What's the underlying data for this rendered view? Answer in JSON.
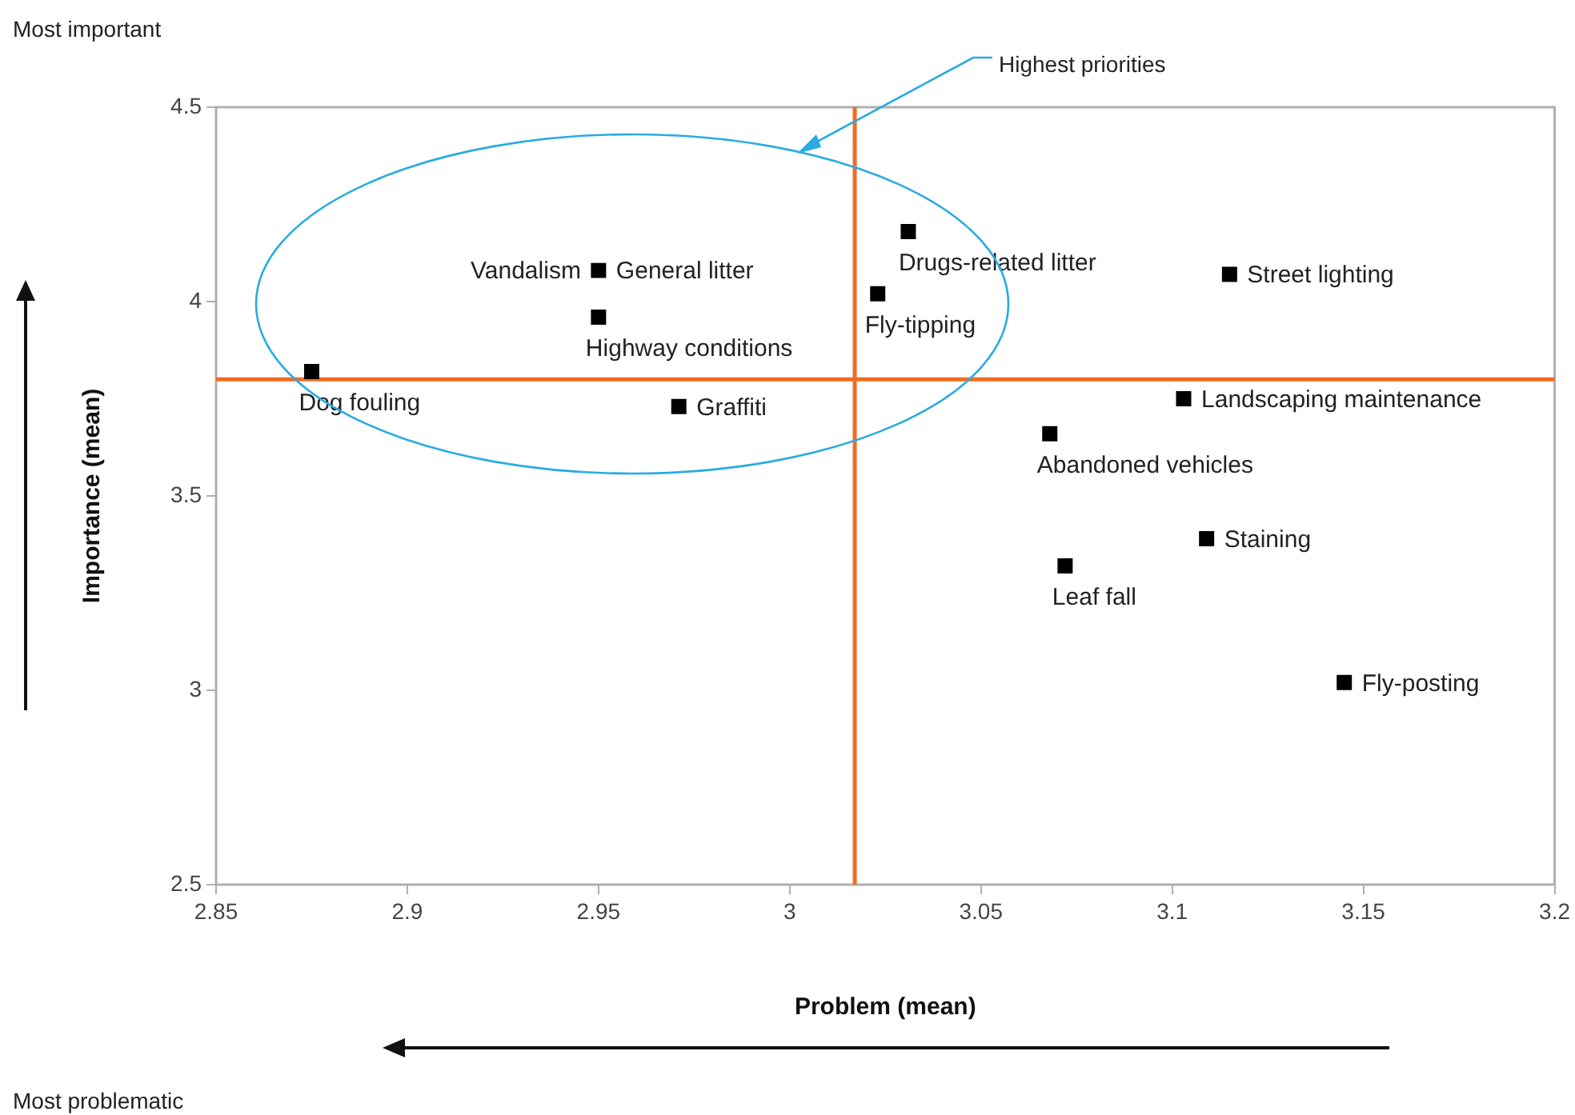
{
  "chart_data": {
    "type": "scatter",
    "xlabel": "Problem (mean)",
    "ylabel": "Importance (mean)",
    "xlim": [
      2.85,
      3.2
    ],
    "xticks": [
      2.85,
      2.9,
      2.95,
      3,
      3.05,
      3.1,
      3.15,
      3.2
    ],
    "ylim": [
      2.5,
      4.5
    ],
    "yticks": [
      2.5,
      3,
      3.5,
      4,
      4.5
    ],
    "grid": false,
    "legend": false,
    "marker": "square",
    "series": [
      {
        "name": "Dog fouling",
        "color": "#000000",
        "x": [
          2.875
        ],
        "values": [
          3.82
        ]
      },
      {
        "name": "Vandalism",
        "color": "#000000",
        "x": [
          2.95
        ],
        "values": [
          4.08
        ]
      },
      {
        "name": "Highway conditions",
        "color": "#000000",
        "x": [
          2.95
        ],
        "values": [
          3.96
        ]
      },
      {
        "name": "Graffiti",
        "color": "#000000",
        "x": [
          2.971
        ],
        "values": [
          3.73
        ]
      },
      {
        "name": "Drugs-related litter",
        "color": "#000000",
        "x": [
          3.031
        ],
        "values": [
          4.18
        ]
      },
      {
        "name": "Fly-tipping",
        "color": "#000000",
        "x": [
          3.023
        ],
        "values": [
          4.02
        ]
      },
      {
        "name": "Street lighting",
        "color": "#000000",
        "x": [
          3.115
        ],
        "values": [
          4.07
        ]
      },
      {
        "name": "Landscaping maintenance",
        "color": "#000000",
        "x": [
          3.103
        ],
        "values": [
          3.75
        ]
      },
      {
        "name": "Abandoned vehicles",
        "color": "#000000",
        "x": [
          3.068
        ],
        "values": [
          3.66
        ]
      },
      {
        "name": "Staining",
        "color": "#000000",
        "x": [
          3.109
        ],
        "values": [
          3.39
        ]
      },
      {
        "name": "Leaf fall",
        "color": "#000000",
        "x": [
          3.072
        ],
        "values": [
          3.32
        ]
      },
      {
        "name": "Fly-posting",
        "color": "#000000",
        "x": [
          3.145
        ],
        "values": [
          3.02
        ]
      }
    ],
    "ref_lines": [
      {
        "axis": "x",
        "value": 3.017,
        "color": "#f26b21"
      },
      {
        "axis": "y",
        "value": 3.8,
        "color": "#f26b21"
      }
    ],
    "annotations": [
      "Most important",
      "Most problematic",
      "Highest priorities",
      {
        "text": "General litter",
        "x": 2.95,
        "y": 4.08
      }
    ]
  }
}
